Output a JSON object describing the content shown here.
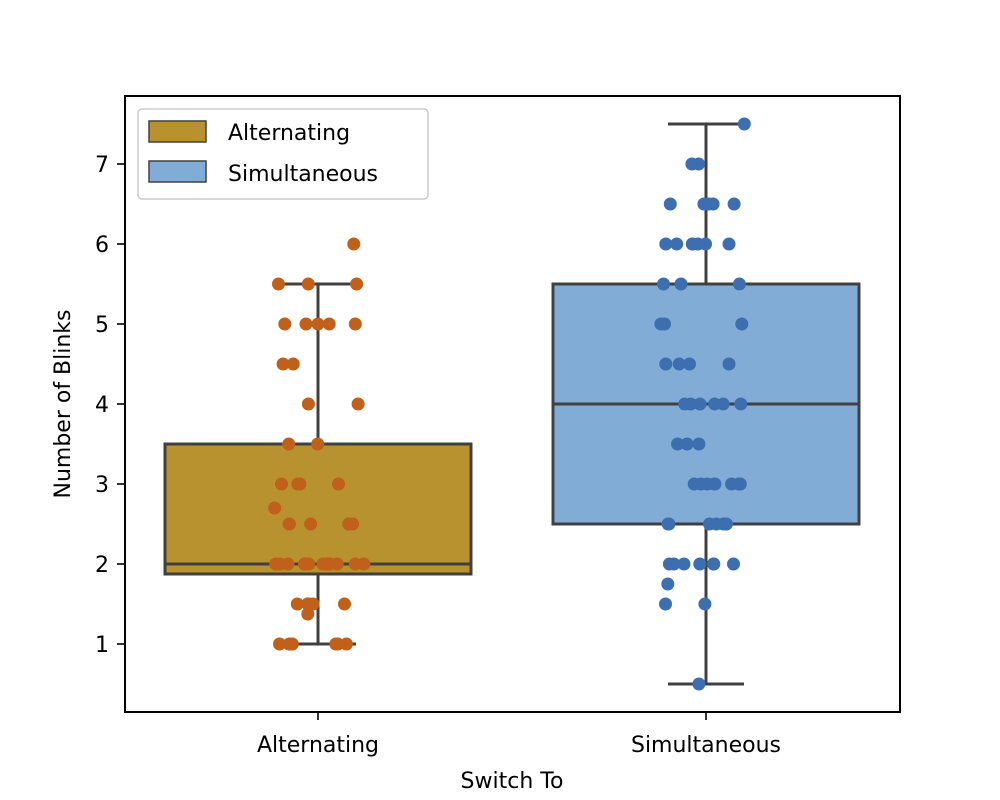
{
  "chart_data": {
    "type": "box",
    "xlabel": "Switch To",
    "ylabel": "Number of Blinks",
    "categories": [
      "Alternating",
      "Simultaneous"
    ],
    "ylim": [
      0.15,
      7.85
    ],
    "yticks": [
      1,
      2,
      3,
      4,
      5,
      6,
      7
    ],
    "legend": {
      "placement": "top-left",
      "entries": [
        "Alternating",
        "Simultaneous"
      ]
    },
    "colors": {
      "Alternating_box": "#b8922e",
      "Alternating_points": "#c0601a",
      "Simultaneous_box": "#80acd6",
      "Simultaneous_points": "#3d6fb0",
      "box_edge": "#404040"
    },
    "boxes": [
      {
        "category": "Alternating",
        "whisker_low": 1.0,
        "q1": 1.875,
        "median": 2.0,
        "q3": 3.5,
        "whisker_high": 5.5
      },
      {
        "category": "Simultaneous",
        "whisker_low": 0.5,
        "q1": 2.5,
        "median": 4.0,
        "q3": 5.5,
        "whisker_high": 7.5
      }
    ],
    "points": [
      {
        "category": "Alternating",
        "values": [
          6.0,
          5.5,
          5.5,
          5.5,
          5.0,
          5.0,
          5.0,
          5.0,
          5.0,
          4.5,
          4.5,
          4.0,
          4.0,
          3.5,
          3.5,
          3.0,
          3.0,
          3.0,
          3.0,
          3.0,
          2.7,
          2.5,
          2.5,
          2.5,
          2.5,
          2.5,
          2.0,
          2.0,
          2.0,
          2.0,
          2.0,
          2.0,
          2.0,
          2.0,
          2.0,
          2.0,
          2.0,
          2.0,
          2.0,
          1.5,
          1.5,
          1.5,
          1.5,
          1.5,
          1.5,
          1.375,
          1.0,
          1.0,
          1.0,
          1.0,
          1.0,
          1.0,
          1.0
        ]
      },
      {
        "category": "Simultaneous",
        "values": [
          7.5,
          7.0,
          7.0,
          6.5,
          6.5,
          6.5,
          6.5,
          6.5,
          6.0,
          6.0,
          6.0,
          6.0,
          6.0,
          6.0,
          6.0,
          5.5,
          5.5,
          5.5,
          5.0,
          5.0,
          5.0,
          4.5,
          4.5,
          4.5,
          4.5,
          4.0,
          4.0,
          4.0,
          4.0,
          4.0,
          4.0,
          3.5,
          3.5,
          3.5,
          3.0,
          3.0,
          3.0,
          3.0,
          3.0,
          3.0,
          3.0,
          3.0,
          2.5,
          2.5,
          2.5,
          2.5,
          2.5,
          2.5,
          2.0,
          2.0,
          2.0,
          2.0,
          2.0,
          2.0,
          2.0,
          1.75,
          1.5,
          1.5,
          0.5
        ]
      }
    ]
  }
}
